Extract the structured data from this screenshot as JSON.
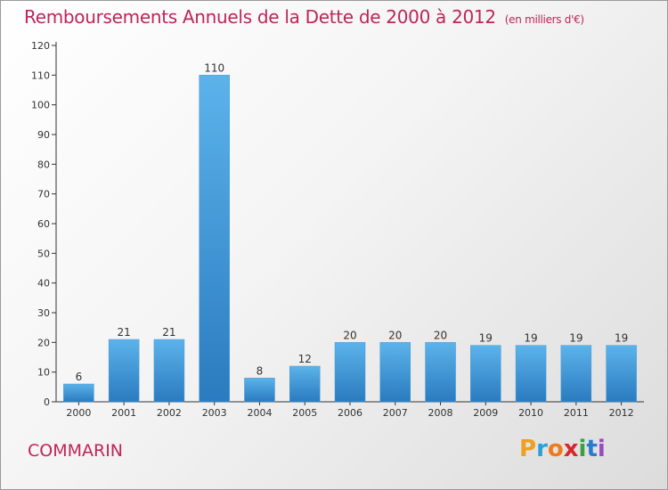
{
  "title": "Remboursements Annuels de la Dette de 2000 à 2012",
  "unit": "(en milliers d'€)",
  "commune": "COMMARIN",
  "logo_text": "Proxiti",
  "colors": {
    "accent": "#c0245a",
    "bar_top": "#5cb3ea",
    "bar_bottom": "#2a7bbf"
  },
  "chart_data": {
    "type": "bar",
    "title": "Remboursements Annuels de la Dette de 2000 à 2012",
    "xlabel": "",
    "ylabel": "",
    "categories": [
      "2000",
      "2001",
      "2002",
      "2003",
      "2004",
      "2005",
      "2006",
      "2007",
      "2008",
      "2009",
      "2010",
      "2011",
      "2012"
    ],
    "values": [
      6,
      21,
      21,
      110,
      8,
      12,
      20,
      20,
      20,
      19,
      19,
      19,
      19
    ],
    "ylim": [
      0,
      120
    ],
    "yticks": [
      0,
      10,
      20,
      30,
      40,
      50,
      60,
      70,
      80,
      90,
      100,
      110,
      120
    ],
    "grid": false,
    "legend": "none"
  }
}
